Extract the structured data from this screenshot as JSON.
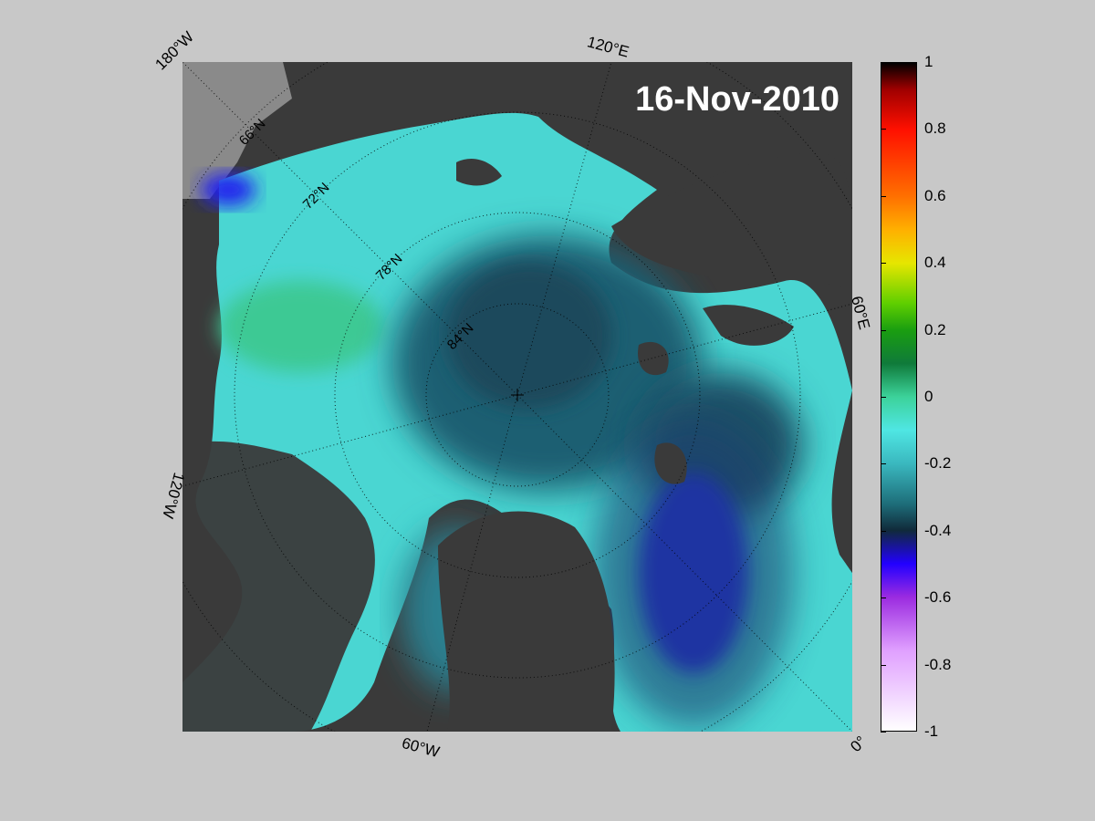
{
  "map": {
    "date": "16-Nov-2010",
    "lon_labels": {
      "w180": "180°W",
      "e120": "120°E",
      "e60": "60°E",
      "w120": "120°W",
      "w60": "60°W",
      "zero": "0°"
    },
    "lat_labels": [
      "66°N",
      "72°N",
      "78°N",
      "84°N"
    ]
  },
  "colorbar": {
    "range": [
      -1,
      1
    ],
    "ticks": [
      "1",
      "0.8",
      "0.6",
      "0.4",
      "0.2",
      "0",
      "-0.2",
      "-0.4",
      "-0.6",
      "-0.8",
      "-1"
    ],
    "colors": {
      "neg1": "#ffffff",
      "neg08": "#e0a0ff",
      "neg06": "#9b2be0",
      "neg05": "#2200ff",
      "neg04": "#102a3a",
      "neg03": "#1e6e7a",
      "neg02": "#3ab8bf",
      "neg01": "#4fe6e3",
      "zero": "#3cd29a",
      "pos01": "#0f7a3a",
      "pos02": "#1a9e10",
      "pos03": "#5fcf00",
      "pos04": "#e6e600",
      "pos05": "#ffb000",
      "pos06": "#ff7000",
      "pos08": "#ff1000",
      "pos09": "#a00000",
      "pos1": "#000000"
    }
  }
}
